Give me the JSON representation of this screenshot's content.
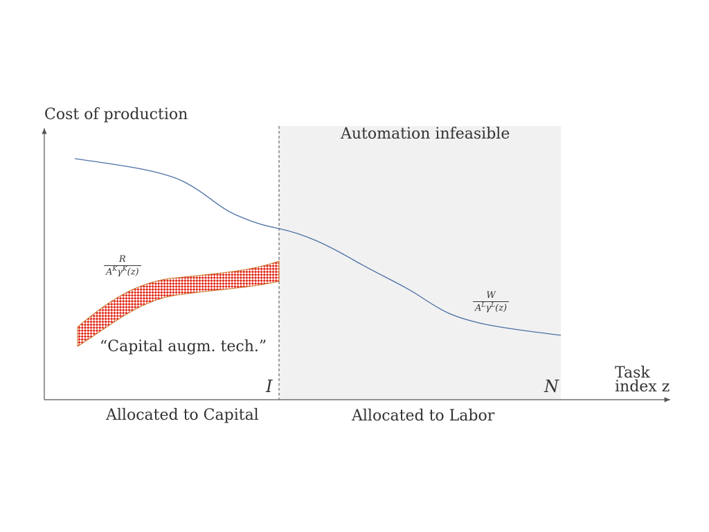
{
  "y_axis_label": "Cost of production",
  "x_axis_label_line1": "Task",
  "x_axis_label_line2": "index z",
  "region_label": "Automation infeasible",
  "threshold_I": "I",
  "threshold_N": "N",
  "capital_cost_formula": {
    "numerator": "R",
    "denominator": "A^K γ^K(z)"
  },
  "labor_cost_formula": {
    "numerator": "W",
    "denominator": "A^L γ^L(z)"
  },
  "band_caption": "“Capital augm. tech.”",
  "allocated_capital": "Allocated to Capital",
  "allocated_labor": "Allocated to Labor",
  "colors": {
    "shade": "#f1f1f1",
    "labor_curve": "#4a6fa5",
    "band_fill": "#e02a1b",
    "band_edge": "#c8701f",
    "axis": "#555555"
  }
}
